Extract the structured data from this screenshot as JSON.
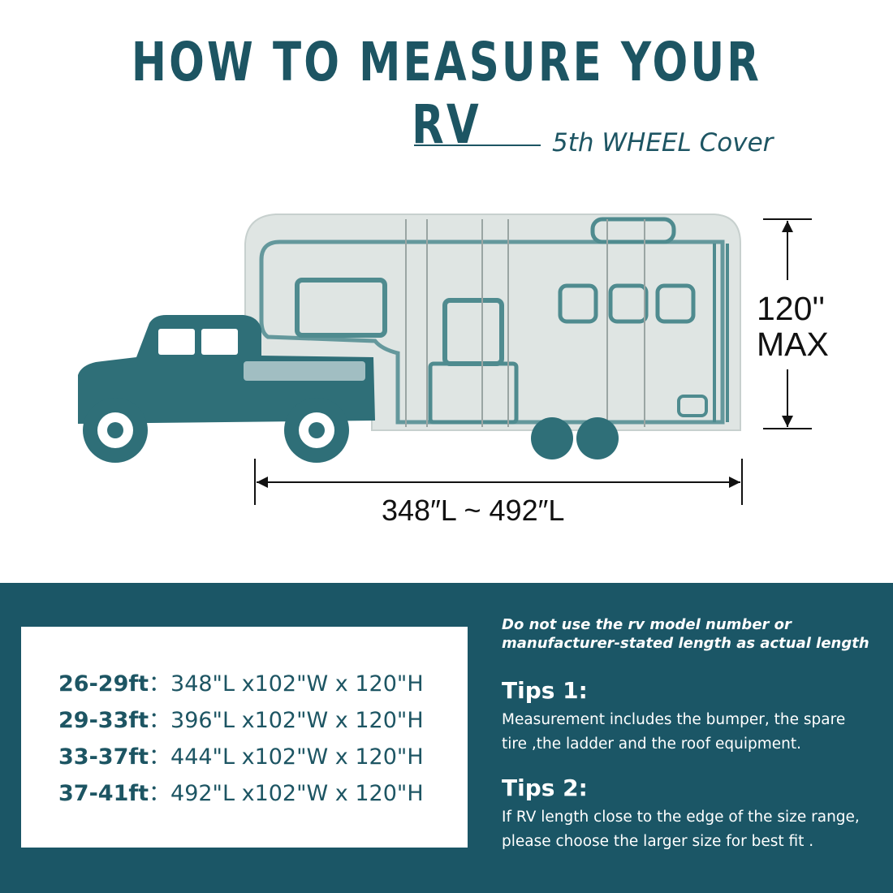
{
  "header": {
    "title": "HOW TO MEASURE YOUR RV",
    "subtitle": "5th WHEEL Cover"
  },
  "diagram": {
    "height_value": "120''",
    "height_max": "MAX",
    "length_label": "348″L ~ 492″L",
    "vehicle_color": "#2f6f78",
    "cover_color": "#dfe5e3"
  },
  "sizes": [
    {
      "range": "26-29ft",
      "sep": "：",
      "dims": "348\"L x102\"W x 120\"H"
    },
    {
      "range": "29-33ft",
      "sep": "：",
      "dims": "396\"L x102\"W x 120\"H"
    },
    {
      "range": "33-37ft",
      "sep": "：",
      "dims": "444\"L x102\"W x 120\"H"
    },
    {
      "range": "37-41ft",
      "sep": "：",
      "dims": "492\"L x102\"W x 120\"H"
    }
  ],
  "notice": {
    "line1": "Do not use the rv model number or",
    "line2": "manufacturer-stated length as actual length"
  },
  "tips": [
    {
      "heading": "Tips 1:",
      "line1": "Measurement includes the bumper, the spare",
      "line2": "tire ,the ladder and the roof equipment."
    },
    {
      "heading": "Tips 2:",
      "line1": "If RV length close to the edge of the size range,",
      "line2": "please choose the larger size for best fit ."
    }
  ],
  "colors": {
    "brand": "#1d5563",
    "panel": "#1b5666"
  }
}
